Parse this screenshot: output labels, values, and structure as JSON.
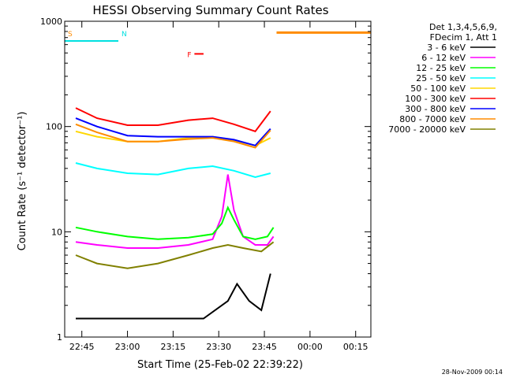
{
  "chart_data": {
    "type": "line",
    "title": "HESSI Observing Summary Count Rates",
    "xlabel": "Start Time (25-Feb-02 22:39:22)",
    "ylabel": "Count Rate (s⁻¹ detector⁻¹)",
    "y_scale": "log",
    "ylim": [
      1,
      1000
    ],
    "xlim": [
      "22:39:22",
      "00:20:00"
    ],
    "x_ticks": [
      "22:45",
      "23:00",
      "23:15",
      "23:30",
      "23:45",
      "00:00",
      "00:15"
    ],
    "y_ticks": [
      "1",
      "10",
      "100",
      "1000"
    ],
    "grid": false,
    "legend_placement": "right",
    "legend_header": [
      "Det 1,3,4,5,6,9,",
      "FDecim 1, Att 1"
    ],
    "footer_date": "28-Nov-2009 00:14",
    "series": [
      {
        "name": "3 - 6 keV",
        "color": "#000000",
        "x": [
          "22:43",
          "22:55",
          "23:10",
          "23:25",
          "23:33",
          "23:36",
          "23:40",
          "23:44",
          "23:47"
        ],
        "y": [
          1.5,
          1.5,
          1.5,
          1.5,
          2.2,
          3.2,
          2.2,
          1.8,
          4.0
        ]
      },
      {
        "name": "6 - 12 keV",
        "color": "#ff00ff",
        "x": [
          "22:43",
          "22:50",
          "23:00",
          "23:10",
          "23:20",
          "23:28",
          "23:31",
          "23:33",
          "23:35",
          "23:38",
          "23:42",
          "23:46",
          "23:48"
        ],
        "y": [
          8,
          7.5,
          7,
          7,
          7.5,
          8.5,
          14,
          35,
          16,
          9,
          7.5,
          7.5,
          9
        ]
      },
      {
        "name": "12 - 25 keV",
        "color": "#00ff00",
        "x": [
          "22:43",
          "22:50",
          "23:00",
          "23:10",
          "23:20",
          "23:28",
          "23:31",
          "23:33",
          "23:35",
          "23:38",
          "23:42",
          "23:46",
          "23:48"
        ],
        "y": [
          11,
          10,
          9,
          8.5,
          8.8,
          9.5,
          12,
          17,
          13,
          9,
          8.5,
          9,
          11
        ]
      },
      {
        "name": "25 - 50 keV",
        "color": "#00ffff",
        "x": [
          "22:43",
          "22:50",
          "23:00",
          "23:10",
          "23:20",
          "23:28",
          "23:35",
          "23:42",
          "23:47"
        ],
        "y": [
          45,
          40,
          36,
          35,
          40,
          42,
          38,
          33,
          36
        ]
      },
      {
        "name": "50 - 100 keV",
        "color": "#ffd700",
        "x": [
          "22:43",
          "22:50",
          "23:00",
          "23:10",
          "23:20",
          "23:28",
          "23:35",
          "23:42",
          "23:47"
        ],
        "y": [
          90,
          80,
          72,
          72,
          78,
          80,
          74,
          66,
          78
        ]
      },
      {
        "name": "100 - 300 keV",
        "color": "#ff0000",
        "x": [
          "22:43",
          "22:50",
          "23:00",
          "23:10",
          "23:20",
          "23:28",
          "23:35",
          "23:42",
          "23:47"
        ],
        "y": [
          150,
          120,
          103,
          103,
          115,
          120,
          105,
          90,
          140
        ]
      },
      {
        "name": "300 - 800 keV",
        "color": "#0000ff",
        "x": [
          "22:43",
          "22:50",
          "23:00",
          "23:10",
          "23:20",
          "23:28",
          "23:35",
          "23:42",
          "23:47"
        ],
        "y": [
          120,
          100,
          82,
          80,
          80,
          80,
          75,
          66,
          95
        ]
      },
      {
        "name": "800 - 7000 keV",
        "color": "#ff8c00",
        "x": [
          "22:43",
          "22:50",
          "23:00",
          "23:10",
          "23:20",
          "23:28",
          "23:35",
          "23:42",
          "23:47"
        ],
        "y": [
          105,
          88,
          72,
          72,
          76,
          78,
          72,
          63,
          92
        ]
      },
      {
        "name": "7000 - 20000 keV",
        "color": "#808000",
        "x": [
          "22:43",
          "22:50",
          "23:00",
          "23:10",
          "23:20",
          "23:28",
          "23:33",
          "23:38",
          "23:44",
          "23:48"
        ],
        "y": [
          6,
          5,
          4.5,
          5,
          6,
          7,
          7.5,
          7,
          6.5,
          8
        ]
      }
    ],
    "flags": [
      {
        "label": "S",
        "color": "#ff8c00",
        "x": [
          "22:39:22",
          "22:57:00"
        ],
        "level": 650
      },
      {
        "label": "N",
        "color": "#00e0e0",
        "x": [
          "22:39:22",
          "22:57:00"
        ],
        "level": 650
      },
      {
        "label": "F",
        "color": "#ff0000",
        "x": [
          "23:22",
          "23:25"
        ],
        "level": 490
      }
    ],
    "attenuator": {
      "color": "#ff8c00",
      "x": [
        "23:49",
        "00:20"
      ],
      "level": 780
    }
  }
}
